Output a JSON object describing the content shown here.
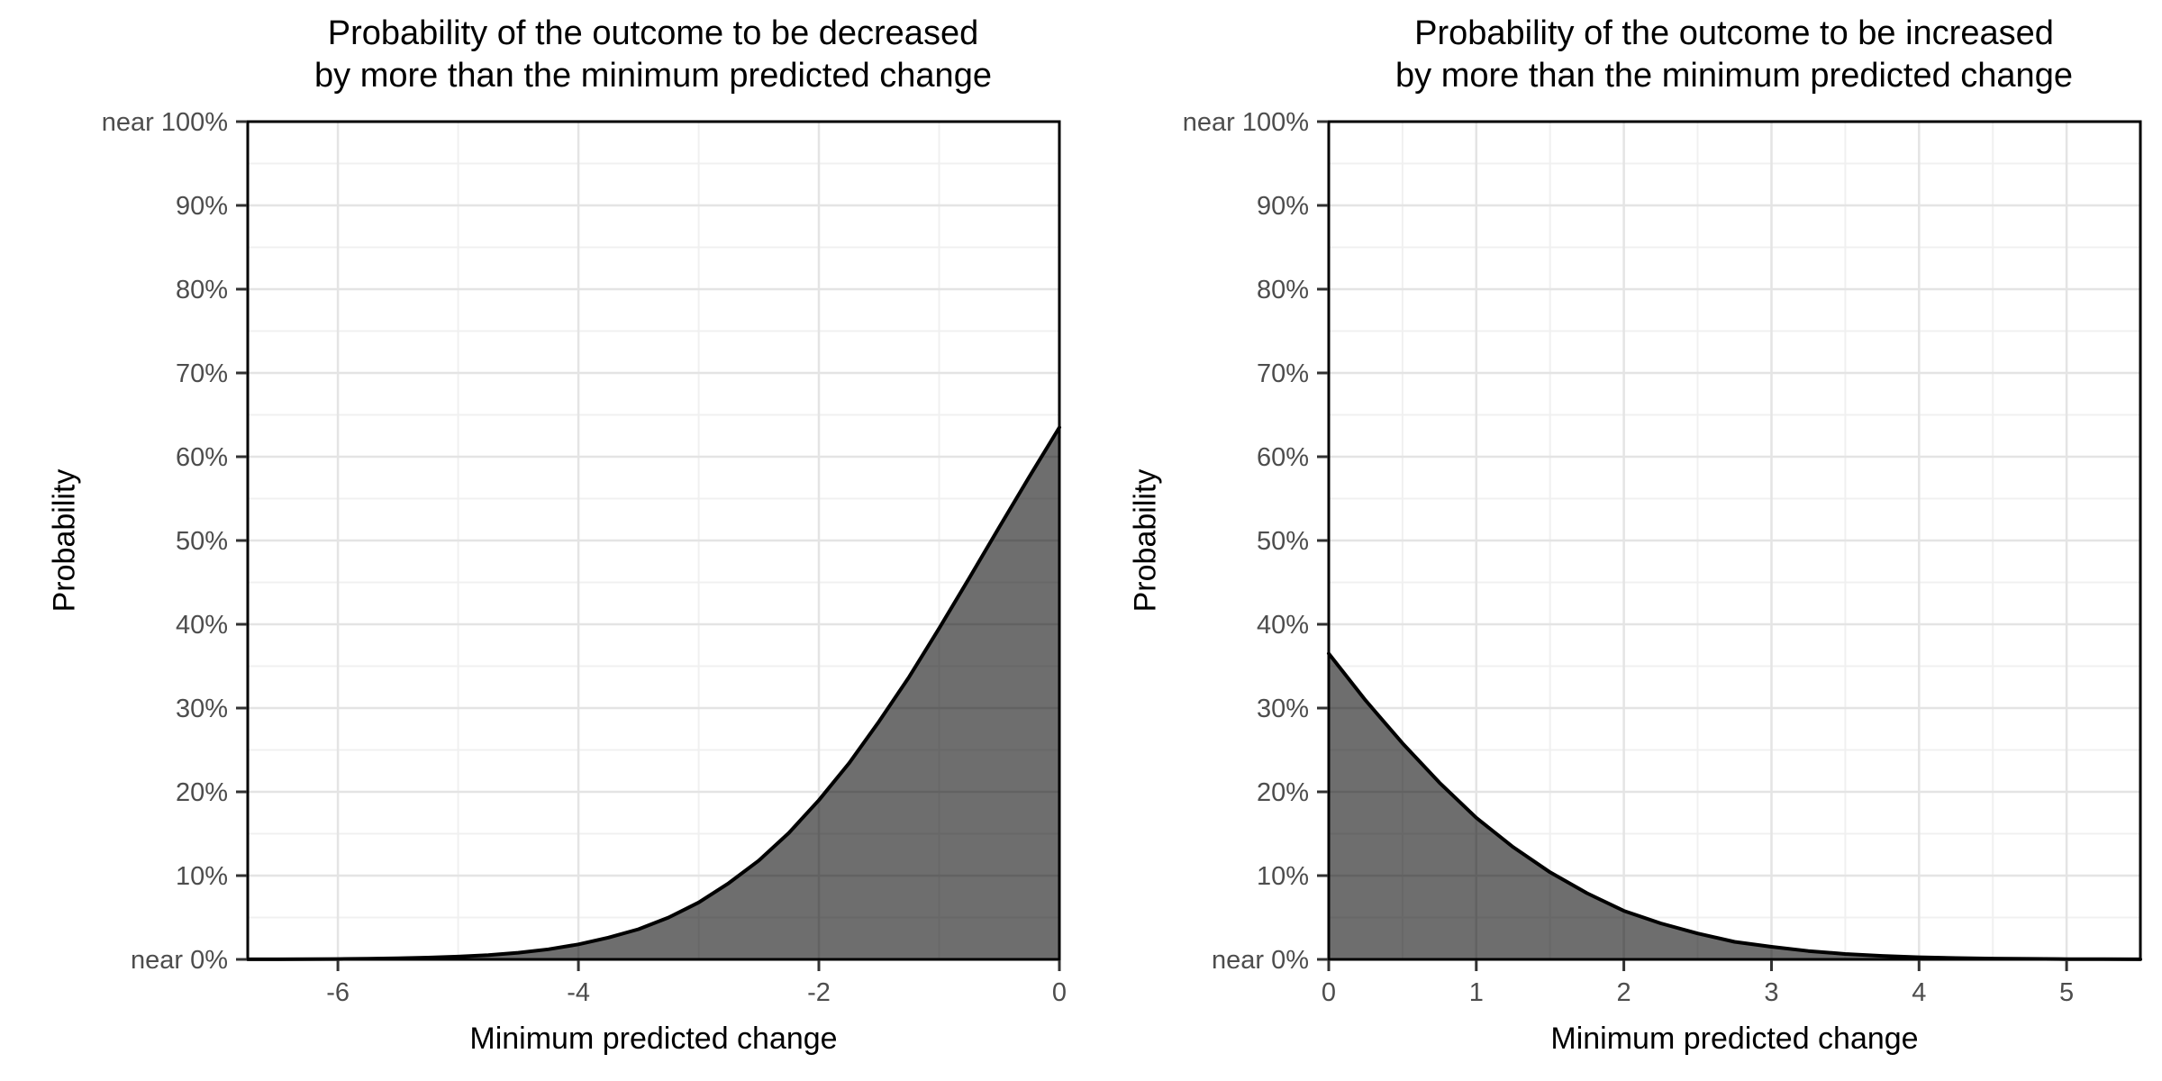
{
  "style": {
    "background": "#ffffff",
    "panel_background": "#ffffff",
    "panel_border_color": "#000000",
    "grid_major_color": "#e4e4e4",
    "grid_minor_color": "#f0f0f0",
    "tick_color": "#333333",
    "tick_label_color": "#4d4d4d",
    "title_color": "#000000",
    "area_fill": "rgba(0,0,0,0.57)",
    "line_color": "#000000"
  },
  "chart_data": [
    {
      "type": "area",
      "title": "Probability of the outcome to be decreased\nby more than the minimum predicted change",
      "xlabel": "Minimum predicted change",
      "ylabel": "Probability",
      "xlim": [
        -6.75,
        0
      ],
      "ylim": [
        0,
        100
      ],
      "grid": true,
      "legend": "none",
      "x_major_ticks": [
        -6,
        -4,
        -2,
        0
      ],
      "x_tick_labels": [
        "-6",
        "-4",
        "-2",
        "0"
      ],
      "x_minor_gridlines": [
        -5,
        -3,
        -1
      ],
      "y_major_ticks": [
        0,
        10,
        20,
        30,
        40,
        50,
        60,
        70,
        80,
        90,
        100
      ],
      "y_tick_labels": [
        "near 0%",
        "10%",
        "20%",
        "30%",
        "40%",
        "50%",
        "60%",
        "70%",
        "80%",
        "90%",
        "near 100%"
      ],
      "y_minor_gridlines": [
        5,
        15,
        25,
        35,
        45,
        55,
        65,
        75,
        85,
        95
      ],
      "series": [
        {
          "x": [
            -6.75,
            -6.5,
            -6.25,
            -6,
            -5.75,
            -5.5,
            -5.25,
            -5,
            -4.75,
            -4.5,
            -4.25,
            -4,
            -3.75,
            -3.5,
            -3.25,
            -3,
            -2.75,
            -2.5,
            -2.25,
            -2,
            -1.75,
            -1.5,
            -1.25,
            -1,
            -0.75,
            -0.5,
            -0.25,
            0
          ],
          "y": [
            0.01,
            0.01,
            0.02,
            0.04,
            0.07,
            0.13,
            0.22,
            0.33,
            0.52,
            0.8,
            1.2,
            1.8,
            2.6,
            3.6,
            5.0,
            6.8,
            9.1,
            11.8,
            15.1,
            19.0,
            23.4,
            28.4,
            33.7,
            39.5,
            45.5,
            51.6,
            57.6,
            63.5
          ]
        }
      ]
    },
    {
      "type": "area",
      "title": "Probability of the outcome to be increased\nby more than the minimum predicted change",
      "xlabel": "Minimum predicted change",
      "ylabel": "Probability",
      "xlim": [
        0,
        5.5
      ],
      "ylim": [
        0,
        100
      ],
      "grid": true,
      "legend": "none",
      "x_major_ticks": [
        0,
        1,
        2,
        3,
        4,
        5
      ],
      "x_tick_labels": [
        "0",
        "1",
        "2",
        "3",
        "4",
        "5"
      ],
      "x_minor_gridlines": [
        0.5,
        1.5,
        2.5,
        3.5,
        4.5,
        5.5
      ],
      "y_major_ticks": [
        0,
        10,
        20,
        30,
        40,
        50,
        60,
        70,
        80,
        90,
        100
      ],
      "y_tick_labels": [
        "near 0%",
        "10%",
        "20%",
        "30%",
        "40%",
        "50%",
        "60%",
        "70%",
        "80%",
        "90%",
        "near 100%"
      ],
      "y_minor_gridlines": [
        5,
        15,
        25,
        35,
        45,
        55,
        65,
        75,
        85,
        95
      ],
      "series": [
        {
          "x": [
            0,
            0.25,
            0.5,
            0.75,
            1,
            1.25,
            1.5,
            1.75,
            2,
            2.25,
            2.5,
            2.75,
            3,
            3.25,
            3.5,
            3.75,
            4,
            4.25,
            4.5,
            4.75,
            5,
            5.25,
            5.5
          ],
          "y": [
            36.5,
            30.9,
            25.8,
            21.1,
            16.9,
            13.4,
            10.4,
            7.9,
            5.8,
            4.3,
            3.1,
            2.1,
            1.5,
            1.0,
            0.65,
            0.42,
            0.26,
            0.16,
            0.1,
            0.06,
            0.03,
            0.02,
            0.01
          ]
        }
      ]
    }
  ]
}
